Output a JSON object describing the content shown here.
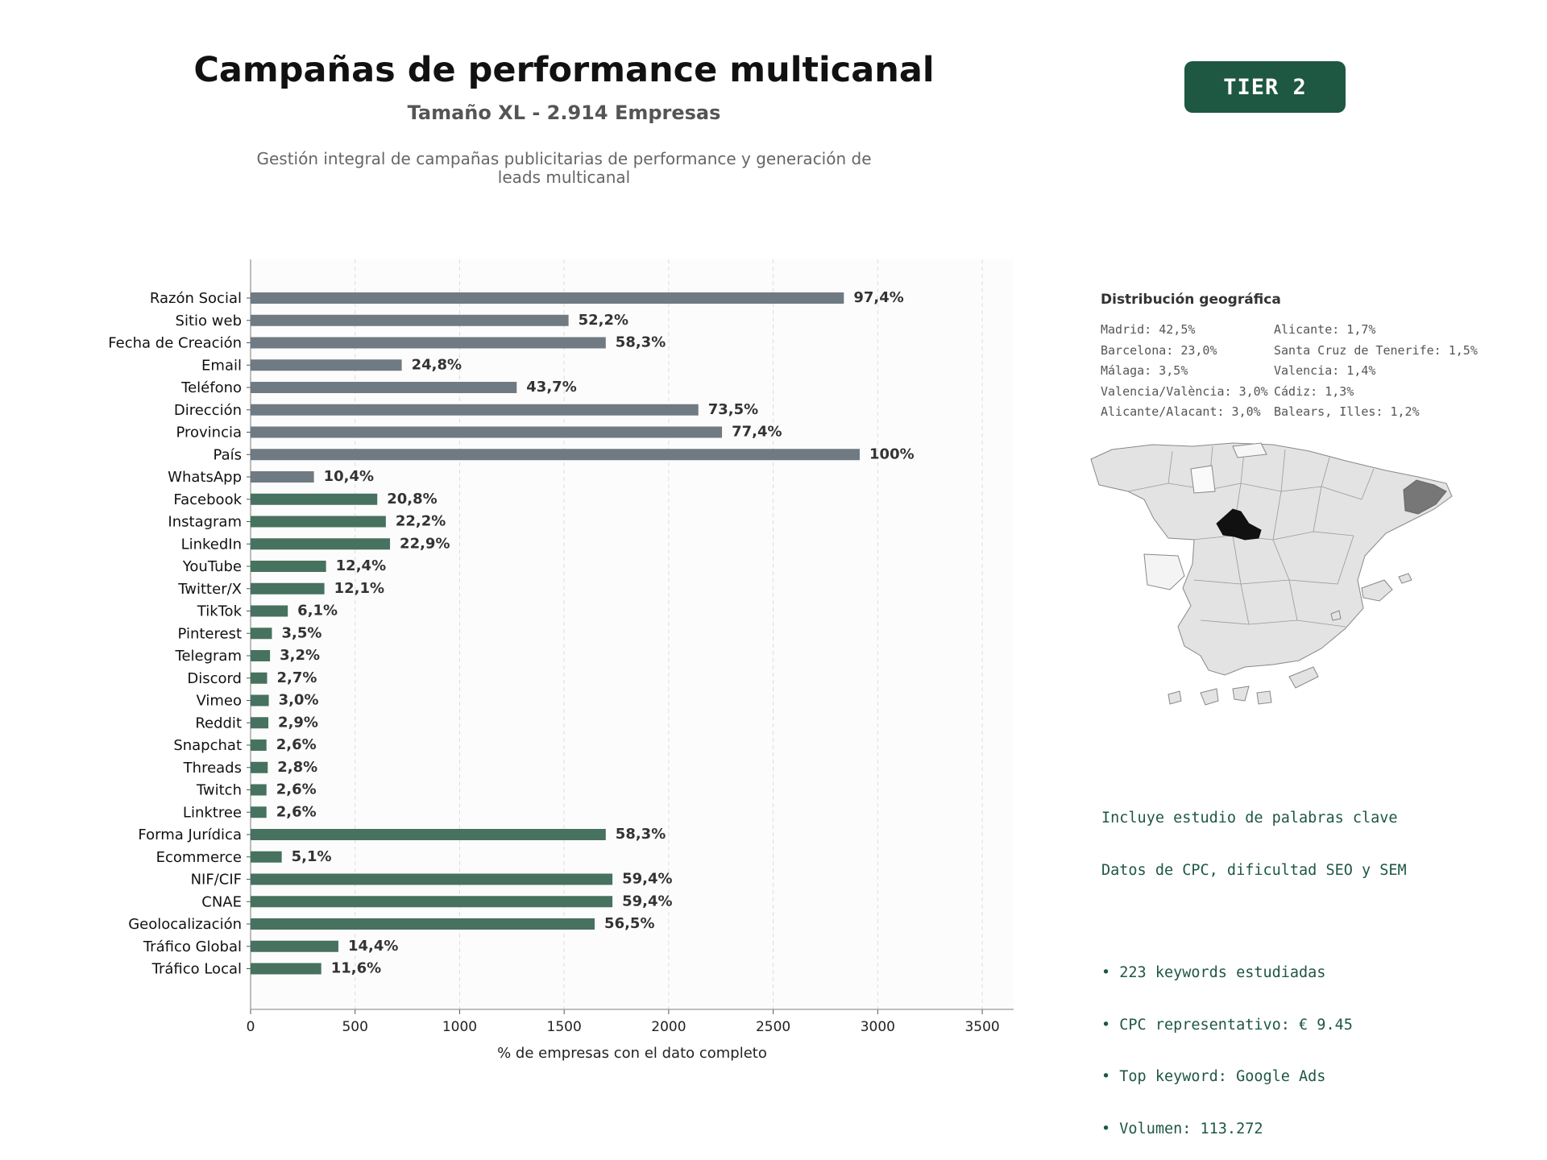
{
  "header": {
    "title": "Campañas de performance multicanal",
    "subtitle": "Tamaño XL - 2.914 Empresas",
    "description": "Gestión integral de campañas publicitarias de performance y generación de leads multicanal",
    "tier": "TIER 2"
  },
  "colors": {
    "gray_bar": "#6f7a82",
    "green_bar": "#46725f",
    "badge": "#1e5742"
  },
  "chart_data": {
    "type": "bar",
    "orientation": "horizontal",
    "xlabel": "% de empresas con el dato completo",
    "ylabel": "",
    "xlim": [
      0,
      3650
    ],
    "xticks": [
      0,
      500,
      1000,
      1500,
      2000,
      2500,
      3000,
      3500
    ],
    "grid": "vertical dashed",
    "categories": [
      "Razón Social",
      "Sitio web",
      "Fecha de Creación",
      "Email",
      "Teléfono",
      "Dirección",
      "Provincia",
      "País",
      "WhatsApp",
      "Facebook",
      "Instagram",
      "LinkedIn",
      "YouTube",
      "Twitter/X",
      "TikTok",
      "Pinterest",
      "Telegram",
      "Discord",
      "Vimeo",
      "Reddit",
      "Snapchat",
      "Threads",
      "Twitch",
      "Linktree",
      "Forma Jurídica",
      "Ecommerce",
      "NIF/CIF",
      "CNAE",
      "Geolocalización",
      "Tráfico Global",
      "Tráfico Local"
    ],
    "values": [
      2838,
      1521,
      1699,
      723,
      1273,
      2142,
      2255,
      2914,
      303,
      606,
      647,
      667,
      361,
      353,
      178,
      102,
      93,
      79,
      87,
      85,
      76,
      82,
      76,
      76,
      1699,
      149,
      1731,
      1731,
      1646,
      420,
      338
    ],
    "labels": [
      "97,4%",
      "52,2%",
      "58,3%",
      "24,8%",
      "43,7%",
      "73,5%",
      "77,4%",
      "100%",
      "10,4%",
      "20,8%",
      "22,2%",
      "22,9%",
      "12,4%",
      "12,1%",
      "6,1%",
      "3,5%",
      "3,2%",
      "2,7%",
      "3,0%",
      "2,9%",
      "2,6%",
      "2,8%",
      "2,6%",
      "2,6%",
      "58,3%",
      "5,1%",
      "59,4%",
      "59,4%",
      "56,5%",
      "14,4%",
      "11,6%"
    ],
    "group": [
      "gray",
      "gray",
      "gray",
      "gray",
      "gray",
      "gray",
      "gray",
      "gray",
      "gray",
      "green",
      "green",
      "green",
      "green",
      "green",
      "green",
      "green",
      "green",
      "green",
      "green",
      "green",
      "green",
      "green",
      "green",
      "green",
      "green",
      "green",
      "green",
      "green",
      "green",
      "green",
      "green"
    ]
  },
  "geo": {
    "title": "Distribución geográfica",
    "items": [
      "Madrid: 42,5%",
      "Alicante: 1,7%",
      "Barcelona: 23,0%",
      "Santa Cruz de Tenerife: 1,5%",
      "Málaga: 3,5%",
      "Valencia: 1,4%",
      "Valencia/València: 3,0%",
      "Cádiz: 1,3%",
      "Alicante/Alacant: 3,0%",
      "Balears, Illes: 1,2%"
    ]
  },
  "info": {
    "line1": "Incluye estudio de palabras clave",
    "line2": "Datos de CPC, dificultad SEO y SEM",
    "bullets": [
      "• 223 keywords estudiadas",
      "• CPC representativo: € 9.45",
      "• Top keyword: Google Ads",
      "• Volumen: 113.272"
    ]
  }
}
